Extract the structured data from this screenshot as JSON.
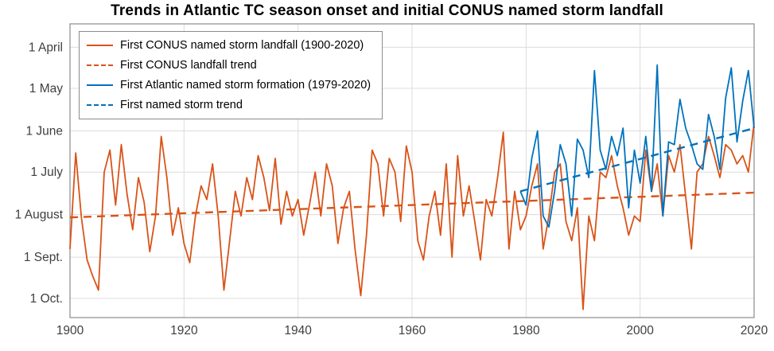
{
  "title": "Trends in Atlantic TC season onset and initial CONUS named storm landfall",
  "colors": {
    "orange": "#D95319",
    "blue": "#0072BD",
    "grid": "#dcdcdc",
    "axis_box": "#8c8c8c",
    "tick_text": "#3f3f3f",
    "background": "#ffffff"
  },
  "chart_data": {
    "type": "line",
    "title": "Trends in Atlantic TC season onset and initial CONUS named storm landfall",
    "grid": true,
    "legend_position": "top-left",
    "x_axis": {
      "min": 1900,
      "max": 2020,
      "ticks": [
        1900,
        1920,
        1940,
        1960,
        1980,
        2000,
        2020
      ]
    },
    "y_axis": {
      "unit": "day-of-year",
      "inverted": true,
      "min_doy": 74,
      "max_doy": 288,
      "ticks": [
        {
          "doy": 91,
          "label": "1 April"
        },
        {
          "doy": 121,
          "label": "1 May"
        },
        {
          "doy": 152,
          "label": "1 June"
        },
        {
          "doy": 182,
          "label": "1 July"
        },
        {
          "doy": 213,
          "label": "1 August"
        },
        {
          "doy": 244,
          "label": "1 Sept."
        },
        {
          "doy": 274,
          "label": "1 Oct."
        }
      ]
    },
    "series": [
      {
        "name": "First CONUS named storm landfall (1900-2020)",
        "color": "#D95319",
        "style": "solid",
        "x_start": 1900,
        "x_step": 1,
        "values": [
          238,
          168,
          215,
          246,
          258,
          268,
          182,
          166,
          206,
          162,
          198,
          224,
          186,
          204,
          240,
          214,
          156,
          186,
          228,
          208,
          234,
          248,
          214,
          192,
          202,
          176,
          214,
          268,
          232,
          196,
          214,
          186,
          202,
          170,
          186,
          210,
          172,
          220,
          196,
          214,
          202,
          228,
          206,
          182,
          214,
          176,
          192,
          234,
          208,
          196,
          238,
          272,
          228,
          166,
          176,
          214,
          172,
          182,
          218,
          163,
          182,
          232,
          246,
          214,
          196,
          228,
          176,
          244,
          170,
          214,
          192,
          218,
          246,
          202,
          214,
          186,
          153,
          238,
          196,
          224,
          214,
          192,
          176,
          238,
          214,
          182,
          176,
          218,
          232,
          208,
          282,
          214,
          232,
          182,
          186,
          170,
          192,
          208,
          228,
          214,
          218,
          166,
          196,
          176,
          214,
          170,
          182,
          162,
          200,
          238,
          182,
          176,
          156,
          170,
          186,
          162,
          166,
          176,
          170,
          182,
          146
        ]
      },
      {
        "name": "First CONUS landfall trend",
        "color": "#D95319",
        "style": "dashed",
        "trend": {
          "x": [
            1900,
            2020
          ],
          "y": [
            215,
            197
          ]
        }
      },
      {
        "name": "First Atlantic named storm formation (1979-2020)",
        "color": "#0072BD",
        "style": "solid",
        "x_start": 1979,
        "x_step": 1,
        "values": [
          196,
          206,
          172,
          152,
          214,
          222,
          196,
          162,
          176,
          214,
          158,
          166,
          186,
          108,
          166,
          180,
          156,
          170,
          150,
          208,
          166,
          190,
          156,
          196,
          104,
          214,
          160,
          162,
          129,
          150,
          162,
          176,
          180,
          140,
          156,
          180,
          128,
          106,
          160,
          130,
          108,
          150
        ]
      },
      {
        "name": "First named storm trend",
        "color": "#0072BD",
        "style": "dashed",
        "trend": {
          "x": [
            1979,
            2020
          ],
          "y": [
            196,
            150
          ]
        }
      }
    ]
  },
  "legend": {
    "items": [
      {
        "label": "First CONUS named storm landfall (1900-2020)"
      },
      {
        "label": "First CONUS landfall trend"
      },
      {
        "label": "First Atlantic named storm formation (1979-2020)"
      },
      {
        "label": "First named storm trend"
      }
    ]
  }
}
